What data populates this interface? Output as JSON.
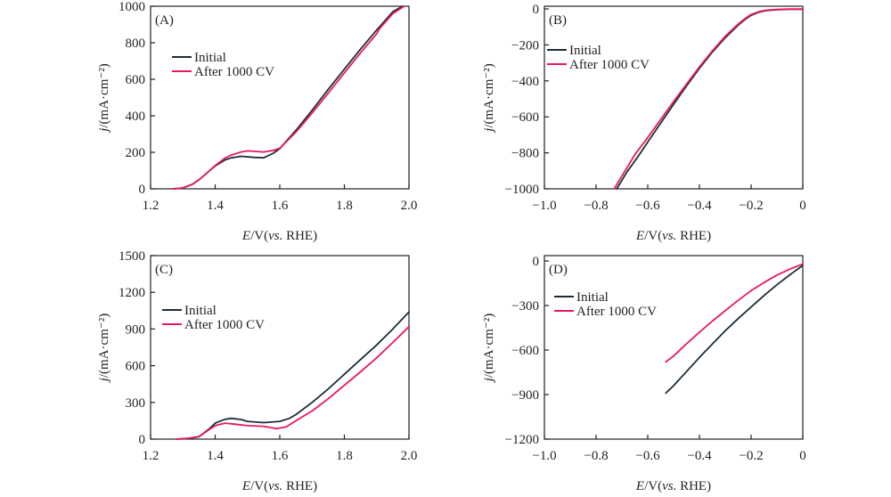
{
  "chart_data": [
    {
      "type": "line",
      "panel_label": "(A)",
      "xlabel": "E/V(vs. RHE)",
      "ylabel": "j/(mA·cm⁻²)",
      "xlim": [
        1.2,
        2.0
      ],
      "ylim": [
        0,
        1000
      ],
      "xticks": [
        1.2,
        1.4,
        1.6,
        1.8,
        2.0
      ],
      "xtick_labels": [
        "1.2",
        "1.4",
        "1.6",
        "1.8",
        "2.0"
      ],
      "yticks": [
        0,
        200,
        400,
        600,
        800,
        1000
      ],
      "ytick_labels": [
        "0",
        "200",
        "400",
        "600",
        "800",
        "1000"
      ],
      "legend": "upper-left",
      "grid": false,
      "series": [
        {
          "name": "Initial",
          "color": "#1c2d38",
          "x": [
            1.27,
            1.3,
            1.33,
            1.35,
            1.38,
            1.4,
            1.43,
            1.45,
            1.48,
            1.52,
            1.55,
            1.58,
            1.6,
            1.65,
            1.7,
            1.75,
            1.8,
            1.85,
            1.9,
            1.95,
            1.98
          ],
          "y": [
            0,
            5,
            25,
            50,
            95,
            125,
            158,
            170,
            178,
            172,
            170,
            195,
            220,
            320,
            430,
            545,
            655,
            765,
            870,
            970,
            1000
          ]
        },
        {
          "name": "After 1000 CV",
          "color": "#e8185a",
          "x": [
            1.27,
            1.3,
            1.33,
            1.35,
            1.38,
            1.4,
            1.43,
            1.45,
            1.48,
            1.5,
            1.55,
            1.58,
            1.6,
            1.65,
            1.7,
            1.75,
            1.8,
            1.85,
            1.9,
            1.91,
            1.95,
            1.985
          ],
          "y": [
            0,
            5,
            25,
            50,
            95,
            128,
            168,
            185,
            202,
            208,
            202,
            210,
            222,
            310,
            415,
            525,
            635,
            745,
            850,
            880,
            960,
            1000
          ]
        }
      ]
    },
    {
      "type": "line",
      "panel_label": "(B)",
      "xlabel": "E/V(vs. RHE)",
      "ylabel": "j/(mA·cm⁻²)",
      "xlim": [
        -1.0,
        0
      ],
      "ylim": [
        -1000,
        15
      ],
      "xticks": [
        -1.0,
        -0.8,
        -0.6,
        -0.4,
        -0.2,
        0
      ],
      "xtick_labels": [
        "−1.0",
        "−0.8",
        "−0.6",
        "−0.4",
        "−0.2",
        "0"
      ],
      "yticks": [
        -1000,
        -800,
        -600,
        -400,
        -200,
        0
      ],
      "ytick_labels": [
        "−1000",
        "−800",
        "−600",
        "−400",
        "−200",
        "0"
      ],
      "legend": "upper-left",
      "grid": false,
      "series": [
        {
          "name": "Initial",
          "color": "#1c2d38",
          "x": [
            -0.72,
            -0.68,
            -0.64,
            -0.6,
            -0.55,
            -0.5,
            -0.45,
            -0.4,
            -0.35,
            -0.3,
            -0.25,
            -0.22,
            -0.2,
            -0.17,
            -0.14,
            -0.1,
            -0.05,
            0
          ],
          "y": [
            -1000,
            -905,
            -825,
            -740,
            -635,
            -530,
            -428,
            -330,
            -240,
            -160,
            -90,
            -55,
            -35,
            -18,
            -9,
            -4,
            -2,
            -2
          ]
        },
        {
          "name": "After 1000 CV",
          "color": "#e8185a",
          "x": [
            -0.73,
            -0.69,
            -0.65,
            -0.6,
            -0.55,
            -0.5,
            -0.45,
            -0.4,
            -0.35,
            -0.3,
            -0.25,
            -0.22,
            -0.2,
            -0.17,
            -0.14,
            -0.1,
            -0.05,
            0
          ],
          "y": [
            -1000,
            -905,
            -810,
            -715,
            -615,
            -515,
            -418,
            -322,
            -233,
            -152,
            -84,
            -50,
            -31,
            -15,
            -7,
            -3,
            -1,
            -1
          ]
        }
      ]
    },
    {
      "type": "line",
      "panel_label": "(C)",
      "xlabel": "E/V(vs. RHE)",
      "ylabel": "j/(mA·cm⁻²)",
      "xlim": [
        1.2,
        2.0
      ],
      "ylim": [
        0,
        1500
      ],
      "xticks": [
        1.2,
        1.4,
        1.6,
        1.8,
        2.0
      ],
      "xtick_labels": [
        "1.2",
        "1.4",
        "1.6",
        "1.8",
        "2.0"
      ],
      "yticks": [
        0,
        300,
        600,
        900,
        1200,
        1500
      ],
      "ytick_labels": [
        "0",
        "300",
        "600",
        "900",
        "1200",
        "1500"
      ],
      "legend": "upper-left",
      "grid": false,
      "series": [
        {
          "name": "Initial",
          "color": "#1c2d38",
          "x": [
            1.28,
            1.32,
            1.35,
            1.38,
            1.4,
            1.43,
            1.45,
            1.48,
            1.5,
            1.55,
            1.6,
            1.63,
            1.65,
            1.7,
            1.75,
            1.8,
            1.85,
            1.9,
            1.95,
            2.0
          ],
          "y": [
            0,
            5,
            20,
            80,
            130,
            162,
            170,
            160,
            145,
            135,
            145,
            170,
            200,
            300,
            410,
            530,
            650,
            770,
            900,
            1040
          ]
        },
        {
          "name": "After 1000 CV",
          "color": "#e8185a",
          "x": [
            1.28,
            1.32,
            1.35,
            1.38,
            1.4,
            1.43,
            1.46,
            1.5,
            1.55,
            1.59,
            1.62,
            1.65,
            1.7,
            1.75,
            1.8,
            1.85,
            1.9,
            1.95,
            2.0
          ],
          "y": [
            0,
            8,
            22,
            75,
            110,
            130,
            122,
            110,
            105,
            85,
            100,
            150,
            230,
            330,
            440,
            550,
            665,
            790,
            920
          ]
        }
      ]
    },
    {
      "type": "line",
      "panel_label": "(D)",
      "xlabel": "E/V(vs. RHE)",
      "ylabel": "j/(mA·cm⁻²)",
      "xlim": [
        -1.0,
        0
      ],
      "ylim": [
        -1200,
        36
      ],
      "xticks": [
        -1.0,
        -0.8,
        -0.6,
        -0.4,
        -0.2,
        0
      ],
      "xtick_labels": [
        "−1.0",
        "−0.8",
        "−0.6",
        "−0.4",
        "−0.2",
        "0"
      ],
      "yticks": [
        -1200,
        -900,
        -600,
        -300,
        0
      ],
      "ytick_labels": [
        "−1200",
        "−900",
        "−600",
        "−300",
        "0"
      ],
      "legend": "upper-left",
      "grid": false,
      "series": [
        {
          "name": "Initial",
          "color": "#1c2d38",
          "x": [
            -0.53,
            -0.5,
            -0.45,
            -0.4,
            -0.35,
            -0.3,
            -0.25,
            -0.2,
            -0.15,
            -0.1,
            -0.05,
            0
          ],
          "y": [
            -890,
            -840,
            -745,
            -650,
            -560,
            -470,
            -388,
            -310,
            -233,
            -160,
            -93,
            -30
          ]
        },
        {
          "name": "After 1000 CV",
          "color": "#e8185a",
          "x": [
            -0.53,
            -0.5,
            -0.45,
            -0.4,
            -0.35,
            -0.3,
            -0.25,
            -0.2,
            -0.15,
            -0.1,
            -0.05,
            0
          ],
          "y": [
            -680,
            -640,
            -558,
            -480,
            -405,
            -335,
            -265,
            -200,
            -145,
            -95,
            -55,
            -20
          ]
        }
      ]
    }
  ]
}
